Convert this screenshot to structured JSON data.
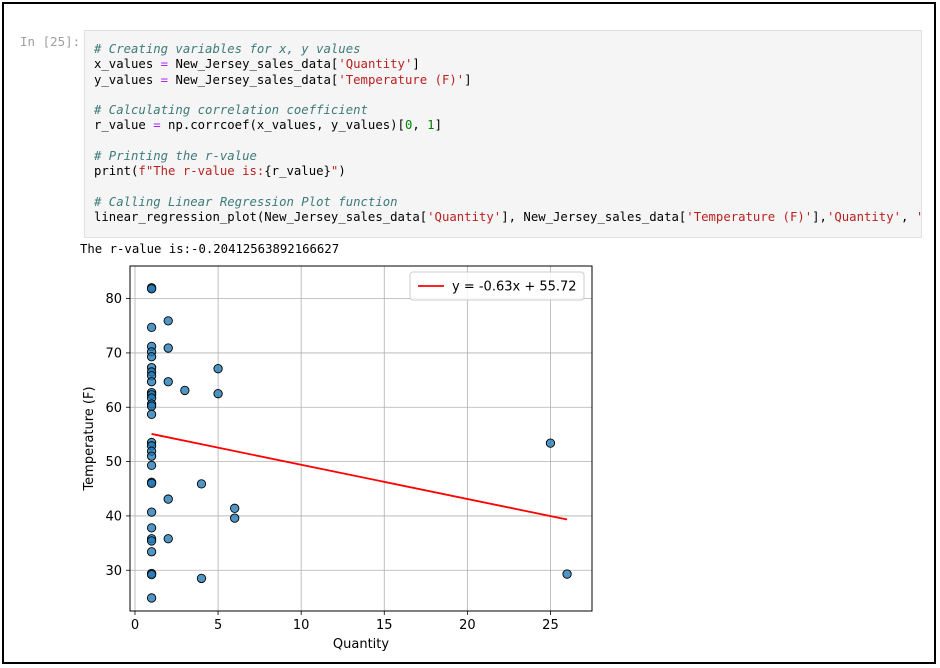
{
  "cell": {
    "prompt": "In [25]:",
    "lines": [
      [
        {
          "t": "# Creating variables for x, y values",
          "c": "cm"
        }
      ],
      [
        {
          "t": "x_values "
        },
        {
          "t": "=",
          "c": "op"
        },
        {
          "t": " New_Jersey_sales_data["
        },
        {
          "t": "'Quantity'",
          "c": "st"
        },
        {
          "t": "]"
        }
      ],
      [
        {
          "t": "y_values "
        },
        {
          "t": "=",
          "c": "op"
        },
        {
          "t": " New_Jersey_sales_data["
        },
        {
          "t": "'Temperature (F)'",
          "c": "st"
        },
        {
          "t": "]"
        }
      ],
      [
        {
          "t": ""
        }
      ],
      [
        {
          "t": "# Calculating correlation coefficient",
          "c": "cm"
        }
      ],
      [
        {
          "t": "r_value "
        },
        {
          "t": "=",
          "c": "op"
        },
        {
          "t": " np.corrcoef(x_values, y_values)["
        },
        {
          "t": "0",
          "c": "nm"
        },
        {
          "t": ", "
        },
        {
          "t": "1",
          "c": "nm"
        },
        {
          "t": "]"
        }
      ],
      [
        {
          "t": ""
        }
      ],
      [
        {
          "t": "# Printing the r-value",
          "c": "cm"
        }
      ],
      [
        {
          "t": "print("
        },
        {
          "t": "f\"The r-value is:",
          "c": "st"
        },
        {
          "t": "{r_value}"
        },
        {
          "t": "\"",
          "c": "st"
        },
        {
          "t": ")"
        }
      ],
      [
        {
          "t": ""
        }
      ],
      [
        {
          "t": "# Calling Linear Regression Plot function",
          "c": "cm"
        }
      ],
      [
        {
          "t": "linear_regression_plot(New_Jersey_sales_data["
        },
        {
          "t": "'Quantity'",
          "c": "st"
        },
        {
          "t": "], New_Jersey_sales_data["
        },
        {
          "t": "'Temperature (F)'",
          "c": "st"
        },
        {
          "t": "],"
        },
        {
          "t": "'Quantity'",
          "c": "st"
        },
        {
          "t": ", "
        },
        {
          "t": "'T",
          "c": "st"
        }
      ]
    ]
  },
  "output": {
    "text": "The r-value is:-0.20412563892166627"
  },
  "chart_data": {
    "type": "scatter",
    "title": "",
    "xlabel": "Quantity",
    "ylabel": "Temperature (F)",
    "xlim": [
      -0.3,
      27.5
    ],
    "ylim": [
      22.5,
      86
    ],
    "xticks": [
      0,
      5,
      10,
      15,
      20,
      25
    ],
    "yticks": [
      30,
      40,
      50,
      60,
      70,
      80
    ],
    "grid": true,
    "legend_placement": "top-right",
    "point_color": "#1f77b4",
    "line_color": "#ff0000",
    "points": [
      [
        1,
        82
      ],
      [
        1,
        81.8
      ],
      [
        1,
        74.7
      ],
      [
        1,
        71.2
      ],
      [
        1,
        70.2
      ],
      [
        1,
        69.3
      ],
      [
        1,
        67.3
      ],
      [
        1,
        66.5
      ],
      [
        1,
        65.8
      ],
      [
        1,
        64.7
      ],
      [
        1,
        62.7
      ],
      [
        1,
        62.3
      ],
      [
        1,
        61.7
      ],
      [
        1,
        60.6
      ],
      [
        1,
        60.2
      ],
      [
        1,
        58.7
      ],
      [
        1,
        53.5
      ],
      [
        1,
        52.9
      ],
      [
        1,
        51.9
      ],
      [
        1,
        51
      ],
      [
        1,
        49.3
      ],
      [
        1,
        46.2
      ],
      [
        1,
        46
      ],
      [
        1,
        40.7
      ],
      [
        1,
        37.8
      ],
      [
        1,
        35.8
      ],
      [
        1,
        35.4
      ],
      [
        1,
        33.4
      ],
      [
        1,
        29.4
      ],
      [
        1,
        29.2
      ],
      [
        1,
        24.9
      ],
      [
        2,
        75.9
      ],
      [
        2,
        70.9
      ],
      [
        2,
        64.7
      ],
      [
        2,
        43.1
      ],
      [
        2,
        35.8
      ],
      [
        3,
        63.1
      ],
      [
        4,
        45.9
      ],
      [
        4,
        28.5
      ],
      [
        5,
        67.1
      ],
      [
        5,
        62.5
      ],
      [
        6,
        41.4
      ],
      [
        6,
        39.6
      ],
      [
        25,
        53.4
      ],
      [
        26,
        29.3
      ]
    ],
    "regression": {
      "label": "y = -0.63x + 55.72",
      "x": [
        1,
        26
      ],
      "y": [
        55.09,
        39.34
      ]
    }
  }
}
